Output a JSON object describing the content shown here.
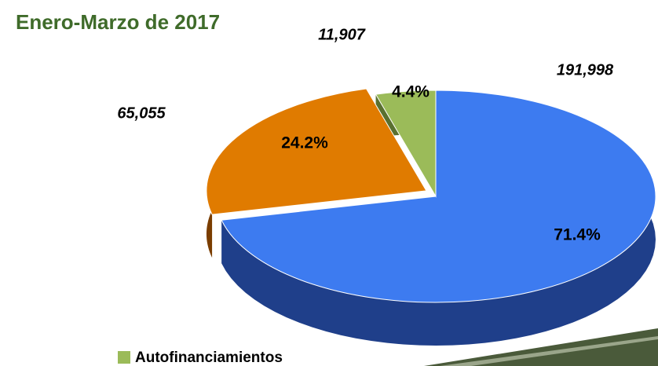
{
  "chart_data": {
    "type": "pie",
    "title": "Enero-Marzo de 2017",
    "categories": [
      null,
      null,
      "Autofinanciamientos"
    ],
    "values": [
      71.4,
      24.2,
      4.4
    ],
    "value_labels": [
      "71.4%",
      "24.2%",
      "4.4%"
    ],
    "counts": [
      191998,
      65055,
      11907
    ],
    "count_labels": [
      "191,998",
      "65,055",
      "11,907"
    ],
    "colors": [
      "#3d7bf0",
      "#e07b00",
      "#9bbb59"
    ],
    "side_colors": [
      "#1f3f8a",
      "#7a3d00",
      "#5a7030"
    ],
    "legend": "bottom-left"
  }
}
